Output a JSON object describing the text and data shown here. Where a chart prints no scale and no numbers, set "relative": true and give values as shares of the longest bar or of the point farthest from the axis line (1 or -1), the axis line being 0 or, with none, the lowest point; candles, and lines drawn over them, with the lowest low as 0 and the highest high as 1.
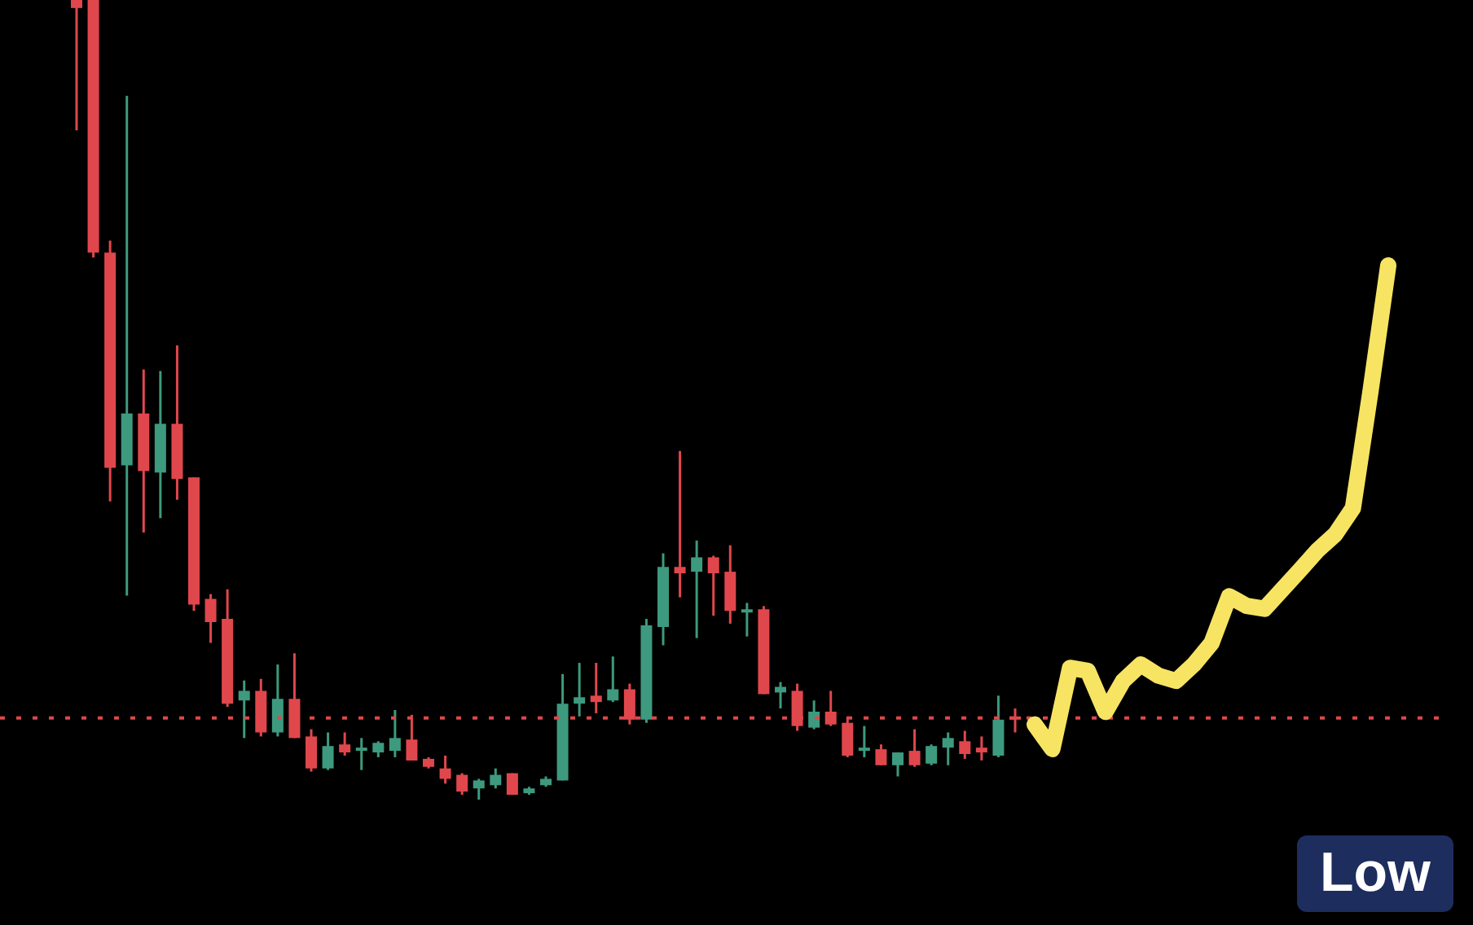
{
  "chart_data": [
    {
      "type": "candlestick",
      "relative": true,
      "categories": [
        null,
        null,
        null,
        null,
        null,
        null,
        null,
        null,
        null,
        null,
        null,
        null,
        null,
        null,
        null,
        null,
        null,
        null,
        null,
        null,
        null,
        null,
        null,
        null,
        null,
        null,
        null,
        null,
        null,
        null,
        null,
        null,
        null,
        null,
        null,
        null,
        null,
        null,
        null,
        null,
        null,
        null,
        null,
        null,
        null,
        null,
        null,
        null,
        null,
        null,
        null,
        null,
        null,
        null,
        null,
        null,
        null
      ],
      "ohlc": [
        [
          1,
          1,
          0.837,
          0.99
        ],
        [
          1,
          1,
          0.678,
          0.684
        ],
        [
          0.684,
          0.699,
          0.373,
          0.415
        ],
        [
          0.418,
          0.88,
          0.255,
          0.483
        ],
        [
          0.483,
          0.538,
          0.334,
          0.411
        ],
        [
          0.409,
          0.536,
          0.352,
          0.47
        ],
        [
          0.47,
          0.568,
          0.375,
          0.401
        ],
        [
          0.403,
          0.403,
          0.236,
          0.244
        ],
        [
          0.251,
          0.257,
          0.196,
          0.222
        ],
        [
          0.226,
          0.263,
          0.116,
          0.12
        ],
        [
          0.124,
          0.149,
          0.077,
          0.136
        ],
        [
          0.136,
          0.151,
          0.079,
          0.084
        ],
        [
          0.084,
          0.169,
          0.079,
          0.126
        ],
        [
          0.126,
          0.183,
          0.077,
          0.077
        ],
        [
          0.079,
          0.088,
          0.035,
          0.039
        ],
        [
          0.039,
          0.084,
          0.037,
          0.067
        ],
        [
          0.069,
          0.084,
          0.055,
          0.059
        ],
        [
          0.061,
          0.077,
          0.037,
          0.065
        ],
        [
          0.059,
          0.073,
          0.053,
          0.071
        ],
        [
          0.061,
          0.112,
          0.053,
          0.077
        ],
        [
          0.075,
          0.106,
          0.049,
          0.049
        ],
        [
          0.051,
          0.053,
          0.039,
          0.041
        ],
        [
          0.039,
          0.055,
          0.02,
          0.026
        ],
        [
          0.031,
          0.033,
          0.006,
          0.01
        ],
        [
          0.014,
          0.026,
          0,
          0.024
        ],
        [
          0.018,
          0.039,
          0.014,
          0.031
        ],
        [
          0.033,
          0.033,
          0.006,
          0.006
        ],
        [
          0.008,
          0.016,
          0.006,
          0.014
        ],
        [
          0.018,
          0.029,
          0.016,
          0.026
        ],
        [
          0.024,
          0.157,
          0.024,
          0.12
        ],
        [
          0.12,
          0.171,
          0.104,
          0.128
        ],
        [
          0.13,
          0.171,
          0.108,
          0.122
        ],
        [
          0.124,
          0.179,
          0.122,
          0.138
        ],
        [
          0.138,
          0.145,
          0.094,
          0.1
        ],
        [
          0.1,
          0.226,
          0.096,
          0.218
        ],
        [
          0.216,
          0.308,
          0.193,
          0.291
        ],
        [
          0.291,
          0.436,
          0.253,
          0.283
        ],
        [
          0.285,
          0.324,
          0.202,
          0.303
        ],
        [
          0.303,
          0.305,
          0.23,
          0.283
        ],
        [
          0.285,
          0.318,
          0.22,
          0.236
        ],
        [
          0.234,
          0.246,
          0.204,
          0.238
        ],
        [
          0.238,
          0.242,
          0.132,
          0.132
        ],
        [
          0.134,
          0.147,
          0.114,
          0.141
        ],
        [
          0.136,
          0.145,
          0.086,
          0.092
        ],
        [
          0.09,
          0.124,
          0.088,
          0.11
        ],
        [
          0.11,
          0.136,
          0.092,
          0.094
        ],
        [
          0.096,
          0.104,
          0.053,
          0.055
        ],
        [
          0.061,
          0.092,
          0.053,
          0.065
        ],
        [
          0.063,
          0.069,
          0.043,
          0.043
        ],
        [
          0.043,
          0.059,
          0.029,
          0.059
        ],
        [
          0.061,
          0.088,
          0.041,
          0.043
        ],
        [
          0.045,
          0.069,
          0.043,
          0.067
        ],
        [
          0.065,
          0.084,
          0.043,
          0.077
        ],
        [
          0.073,
          0.086,
          0.051,
          0.057
        ],
        [
          0.065,
          0.079,
          0.049,
          0.059
        ],
        [
          0.055,
          0.13,
          0.053,
          0.1
        ],
        [
          0.104,
          0.114,
          0.084,
          0.1
        ]
      ],
      "colors": [
        "#e0474c",
        "#e0474c",
        "#e0474c",
        "#3d9a7e",
        "#e0474c",
        "#3d9a7e",
        "#e0474c",
        "#e0474c",
        "#e0474c",
        "#e0474c",
        "#3d9a7e",
        "#e0474c",
        "#3d9a7e",
        "#e0474c",
        "#e0474c",
        "#3d9a7e",
        "#e0474c",
        "#3d9a7e",
        "#3d9a7e",
        "#3d9a7e",
        "#e0474c",
        "#e0474c",
        "#e0474c",
        "#e0474c",
        "#3d9a7e",
        "#3d9a7e",
        "#e0474c",
        "#3d9a7e",
        "#3d9a7e",
        "#3d9a7e",
        "#3d9a7e",
        "#e0474c",
        "#3d9a7e",
        "#e0474c",
        "#3d9a7e",
        "#3d9a7e",
        "#e0474c",
        "#3d9a7e",
        "#e0474c",
        "#e0474c",
        "#3d9a7e",
        "#e0474c",
        "#3d9a7e",
        "#e0474c",
        "#3d9a7e",
        "#e0474c",
        "#e0474c",
        "#3d9a7e",
        "#e0474c",
        "#3d9a7e",
        "#e0474c",
        "#3d9a7e",
        "#3d9a7e",
        "#e0474c",
        "#e0474c",
        "#3d9a7e",
        "#e0474c"
      ],
      "ref_lines": [
        {
          "axis": "y",
          "value": 0.102,
          "color": "#e0474c",
          "line_style": "dotted"
        }
      ],
      "annotations": [
        "Low"
      ]
    },
    {
      "type": "line",
      "relative": true,
      "categories": [
        null,
        null,
        null,
        null,
        null,
        null,
        null,
        null,
        null,
        null,
        null,
        null,
        null,
        null,
        null,
        null,
        null,
        null,
        null,
        null,
        null
      ],
      "series": [
        {
          "color": "#f7e463",
          "values": [
            0.051,
            0,
            0.168,
            0.162,
            0.077,
            0.141,
            0.175,
            0.152,
            0.141,
            0.175,
            0.219,
            0.316,
            0.296,
            0.29,
            0.33,
            0.37,
            0.411,
            0.444,
            0.498,
            0.741,
            1
          ]
        }
      ]
    }
  ]
}
